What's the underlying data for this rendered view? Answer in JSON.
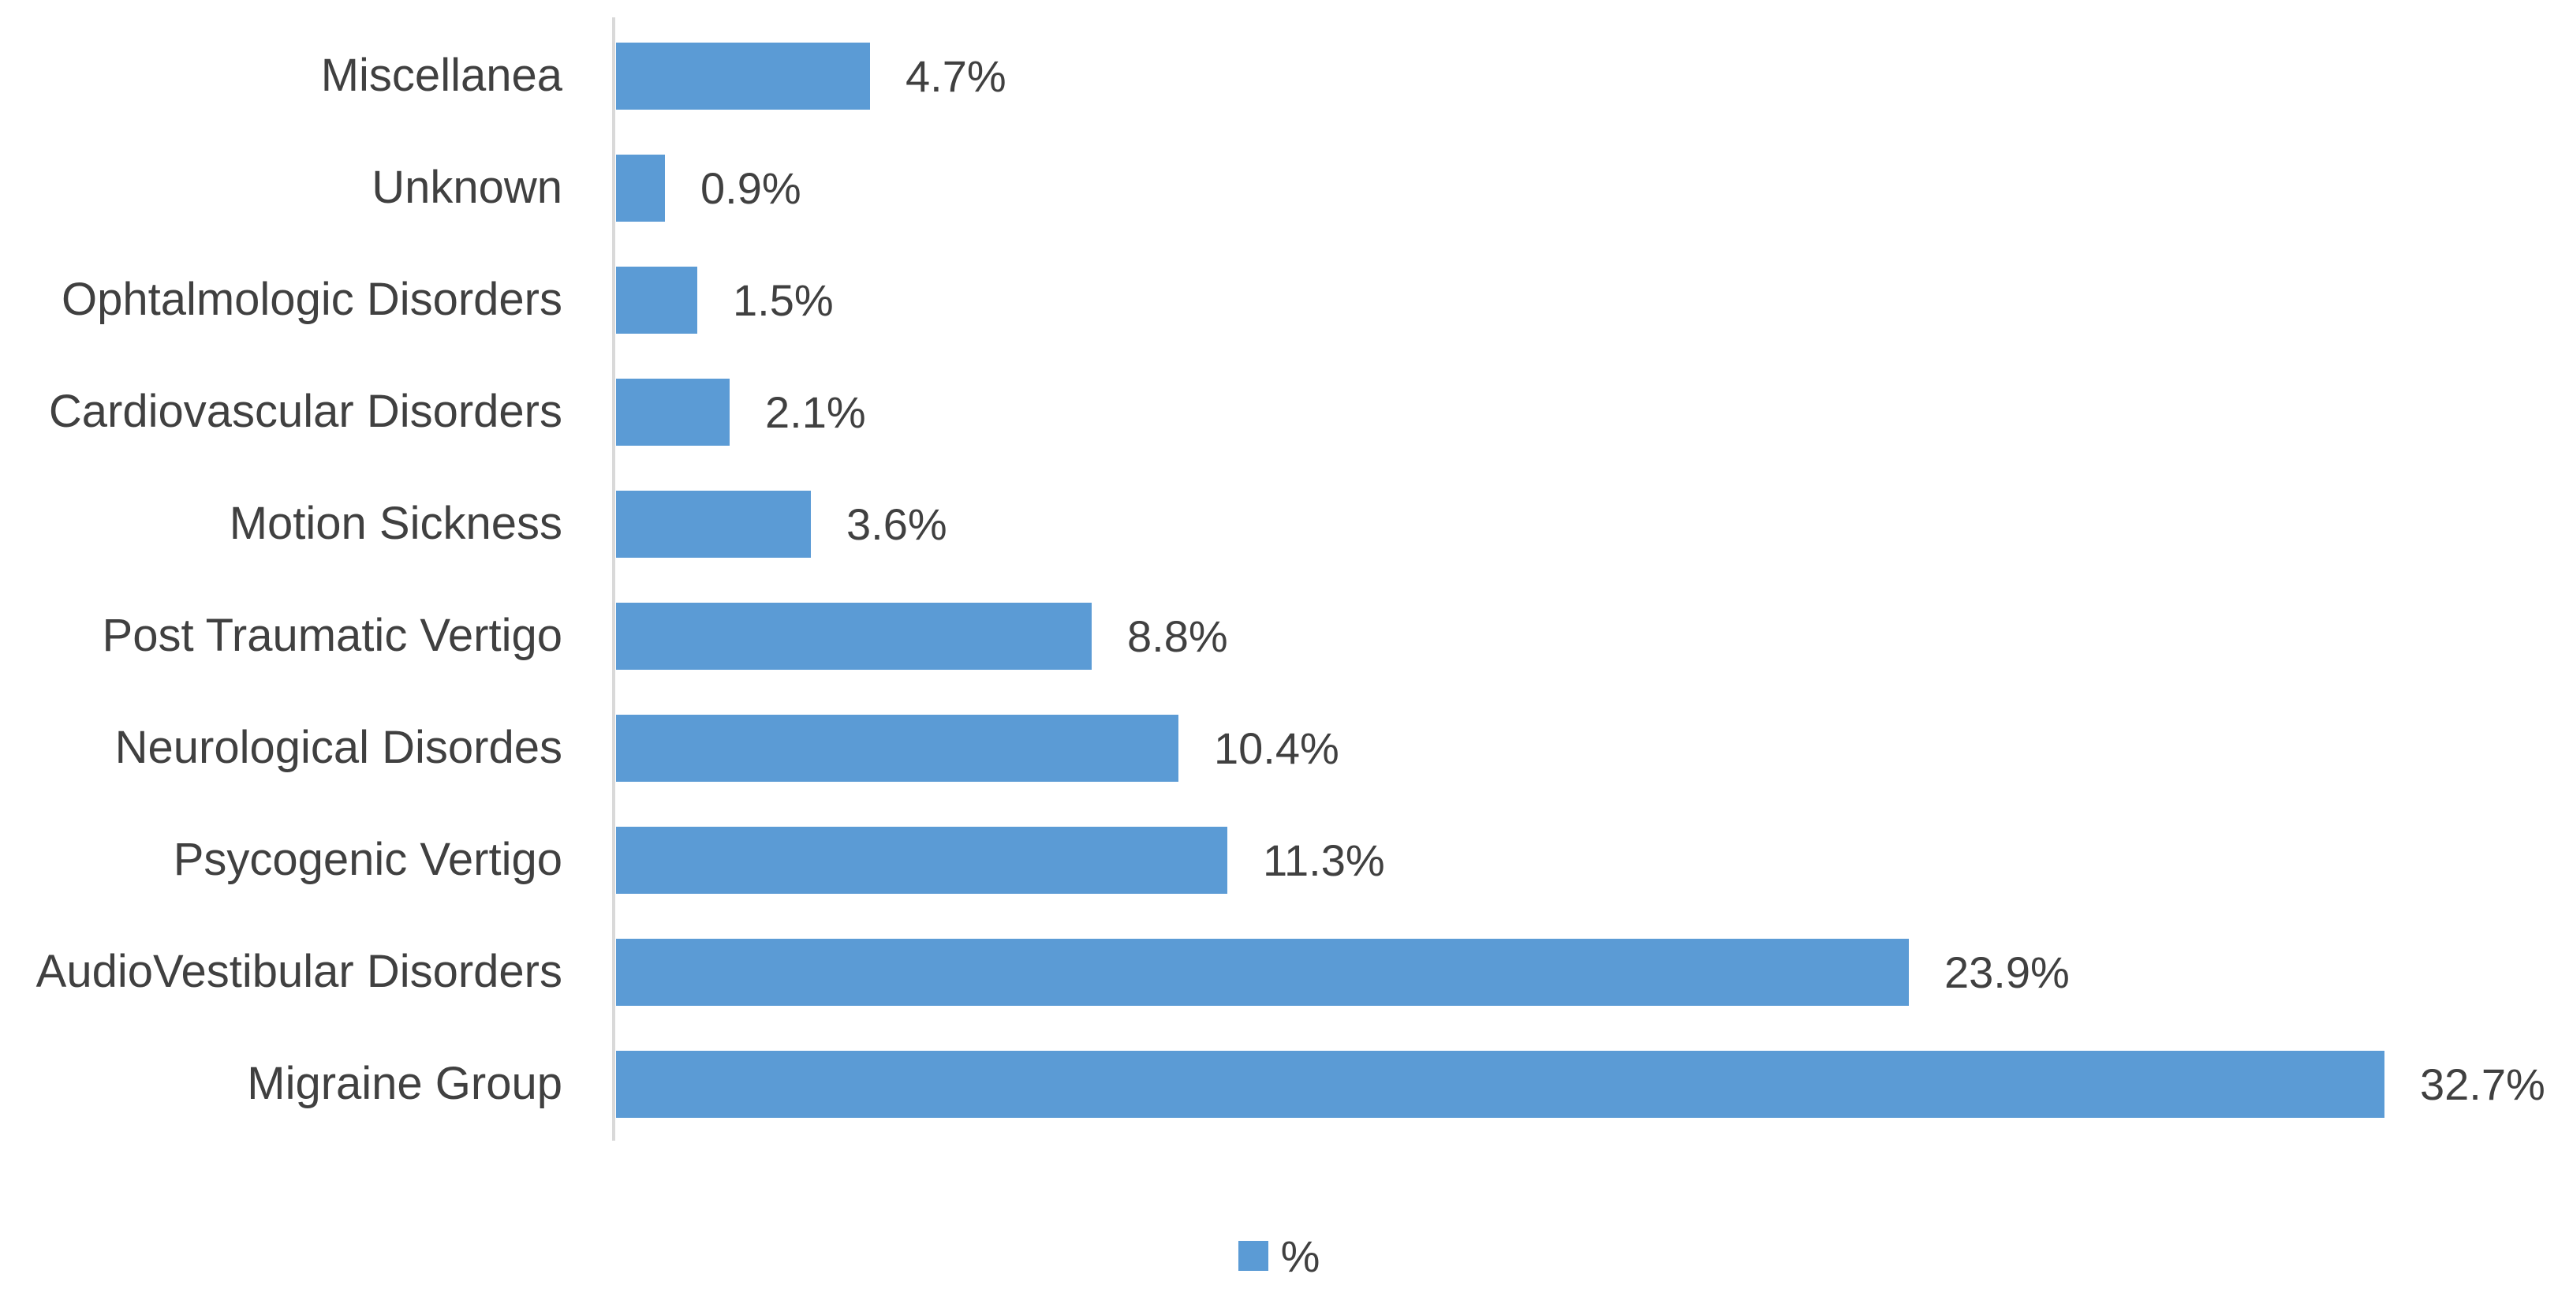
{
  "chart_data": {
    "type": "bar",
    "orientation": "horizontal",
    "categories": [
      "Miscellanea",
      "Unknown",
      "Ophtalmologic Disorders",
      "Cardiovascular Disorders",
      "Motion Sickness",
      "Post Traumatic Vertigo",
      "Neurological Disordes",
      "Psycogenic Vertigo",
      "AudioVestibular Disorders",
      "Migraine Group"
    ],
    "series": [
      {
        "name": "%",
        "values": [
          4.7,
          0.9,
          1.5,
          2.1,
          3.6,
          8.8,
          10.4,
          11.3,
          23.9,
          32.7
        ]
      }
    ],
    "data_labels": [
      "4.7%",
      "0.9%",
      "1.5%",
      "2.1%",
      "3.6%",
      "8.8%",
      "10.4%",
      "11.3%",
      "23.9%",
      "32.7%"
    ],
    "xlim": [
      0,
      36
    ],
    "grid": false,
    "axis_tick_labels_visible": false,
    "legend": {
      "position": "bottom",
      "entries": [
        "%"
      ]
    },
    "colors": {
      "bar": "#5b9bd5",
      "axis_line": "#d9d9d9",
      "text": "#404040",
      "background": "#ffffff"
    }
  }
}
